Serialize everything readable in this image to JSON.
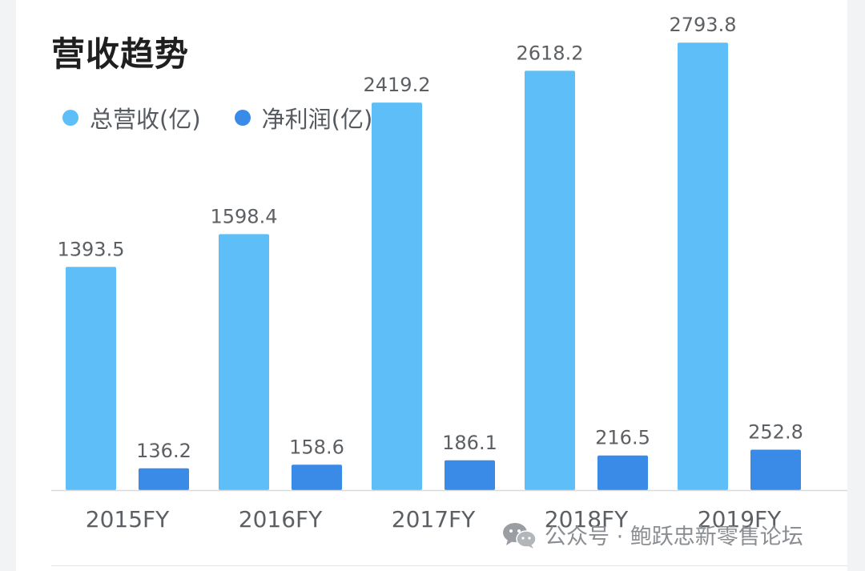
{
  "colors": {
    "revenue": "#5ebef8",
    "profit": "#3a8ae8",
    "text": "#5c5f63",
    "axis": "#d9dadc"
  },
  "chart_data": {
    "type": "bar",
    "title": "营收趋势",
    "categories": [
      "2015FY",
      "2016FY",
      "2017FY",
      "2018FY",
      "2019FY"
    ],
    "series": [
      {
        "name": "总营收(亿)",
        "values": [
          1393.5,
          1598.4,
          2419.2,
          2618.2,
          2793.8
        ]
      },
      {
        "name": "净利润(亿)",
        "values": [
          136.2,
          158.6,
          186.1,
          216.5,
          252.8
        ]
      }
    ],
    "data_labels": [
      [
        "1393.5",
        "1598.4",
        "2419.2",
        "2618.2",
        "2793.8"
      ],
      [
        "136.2",
        "158.6",
        "186.1",
        "216.5",
        "252.8"
      ]
    ],
    "xlabel": "",
    "ylabel": "",
    "ylim": [
      0,
      3000
    ],
    "grid": false,
    "legend": "top-left"
  },
  "watermark": {
    "icon": "wechat-icon",
    "text": "公众号 · 鲍跃忠新零售论坛"
  }
}
